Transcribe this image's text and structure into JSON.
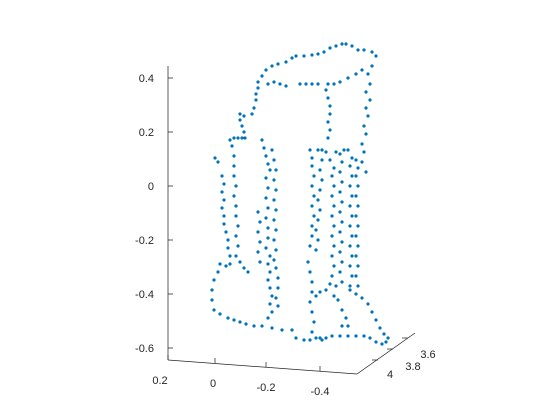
{
  "chart_data": {
    "type": "scatter",
    "title": "",
    "xlabel": "",
    "ylabel": "",
    "zlabel": "",
    "grid": false,
    "marker_color": "#0072BD",
    "x_ticks": [
      "0.2",
      "0",
      "-0.2",
      "-0.4"
    ],
    "y_ticks": [
      "4",
      "3.8",
      "3.6"
    ],
    "z_ticks": [
      "0.4",
      "0.2",
      "0",
      "-0.2",
      "-0.4",
      "-0.6"
    ],
    "xlim": [
      0.2,
      -0.45
    ],
    "ylim": [
      4.1,
      3.5
    ],
    "zlim": [
      -0.65,
      0.45
    ]
  }
}
